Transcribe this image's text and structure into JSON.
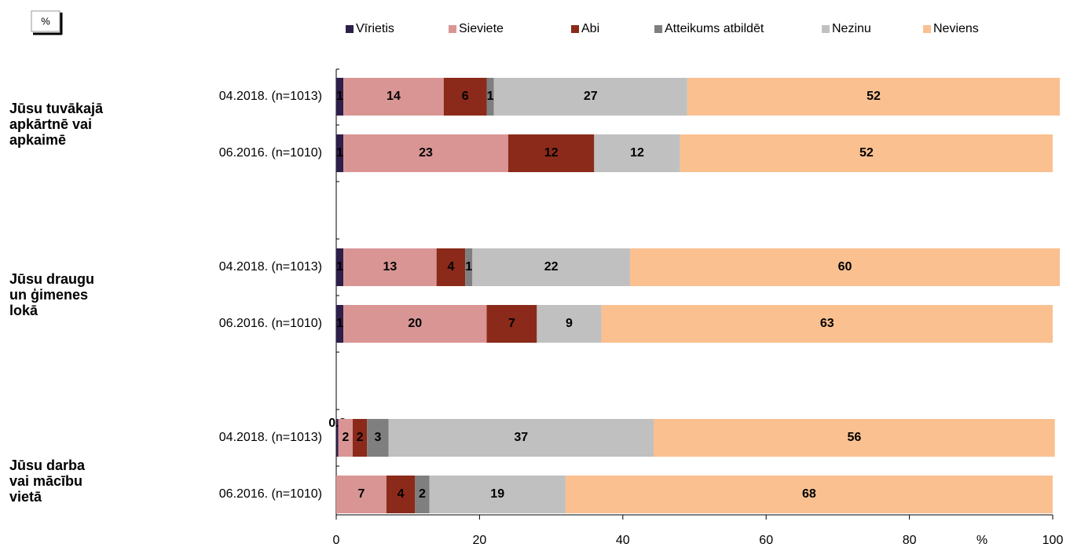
{
  "chart_data": {
    "type": "stacked-barh",
    "unit": "%",
    "xlabel": "%",
    "groups": [
      {
        "label": [
          "Jūsu tuvākajā",
          "apkārtnē vai",
          "apkaimē"
        ]
      },
      {
        "label": [
          "Jūsu draugu",
          "un ģimenes",
          "lokā"
        ]
      },
      {
        "label": [
          "Jūsu darba",
          "vai mācību",
          "vietā"
        ]
      }
    ],
    "categories": [
      "04.2018. (n=1013)",
      "06.2016. (n=1010)",
      "04.2018. (n=1013)",
      "06.2016. (n=1010)",
      "04.2018. (n=1013)",
      "06.2016. (n=1010)"
    ],
    "series": [
      {
        "name": "Vīrietis",
        "color": "#2e1f4a",
        "values": [
          1,
          1,
          1,
          1,
          0.3,
          null
        ]
      },
      {
        "name": "Sieviete",
        "color": "#d99594",
        "values": [
          14,
          23,
          13,
          20,
          2,
          7
        ]
      },
      {
        "name": "Abi",
        "color": "#8b2a1a",
        "values": [
          6,
          12,
          4,
          7,
          2,
          4
        ]
      },
      {
        "name": "Atteikums atbildēt",
        "color": "#7f7f7f",
        "values": [
          1,
          null,
          1,
          null,
          3,
          2
        ]
      },
      {
        "name": "Nezinu",
        "color": "#c0c0c0",
        "values": [
          27,
          12,
          22,
          9,
          37,
          19
        ]
      },
      {
        "name": "Neviens",
        "color": "#fac090",
        "values": [
          52,
          52,
          60,
          63,
          56,
          68
        ]
      }
    ],
    "xlim": [
      0,
      100
    ],
    "xticks": [
      0,
      20,
      40,
      60,
      80,
      100
    ]
  }
}
